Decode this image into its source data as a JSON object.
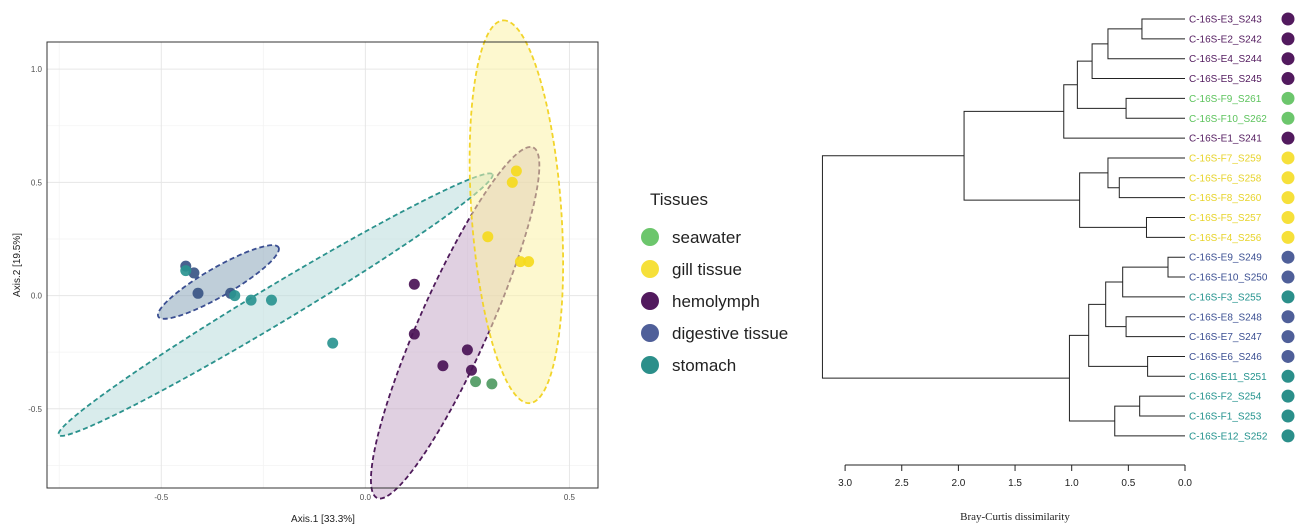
{
  "chart_data": [
    {
      "type": "scatter",
      "xlabel": "Axis.1   [33.3%]",
      "ylabel": "Axis.2   [19.5%]",
      "xlim": [
        -0.78,
        0.57
      ],
      "ylim": [
        -0.85,
        1.12
      ],
      "xticks": [
        -0.5,
        0.0,
        0.5
      ],
      "xtick_labels": [
        "-0.5",
        "0.0",
        "0.5"
      ],
      "yticks": [
        -0.5,
        0.0,
        0.5,
        1.0
      ],
      "ytick_labels": [
        "-0.5",
        "0.0",
        "0.5",
        "1.0"
      ],
      "grid": true,
      "series": [
        {
          "name": "seawater",
          "points": [
            [
              0.27,
              -0.38
            ],
            [
              0.31,
              -0.39
            ]
          ]
        },
        {
          "name": "gill tissue",
          "points": [
            [
              0.37,
              0.55
            ],
            [
              0.36,
              0.5
            ],
            [
              0.3,
              0.26
            ],
            [
              0.38,
              0.15
            ],
            [
              0.4,
              0.15
            ]
          ]
        },
        {
          "name": "hemolymph",
          "points": [
            [
              0.12,
              0.05
            ],
            [
              0.12,
              -0.17
            ],
            [
              0.19,
              -0.31
            ],
            [
              0.25,
              -0.24
            ],
            [
              0.26,
              -0.33
            ]
          ]
        },
        {
          "name": "digestive tissue",
          "points": [
            [
              -0.44,
              0.13
            ],
            [
              -0.42,
              0.1
            ],
            [
              -0.41,
              0.01
            ],
            [
              -0.33,
              0.01
            ]
          ]
        },
        {
          "name": "stomach",
          "points": [
            [
              -0.44,
              0.11
            ],
            [
              -0.32,
              0.0
            ],
            [
              -0.28,
              -0.02
            ],
            [
              -0.23,
              -0.02
            ],
            [
              -0.08,
              -0.21
            ]
          ]
        }
      ],
      "ellipses": [
        {
          "group": "stomach",
          "cx": -0.22,
          "cy": -0.04,
          "rx": 0.62,
          "ry": 0.045,
          "angle_deg": -31
        },
        {
          "group": "digestive tissue",
          "cx": -0.36,
          "cy": 0.06,
          "rx": 0.17,
          "ry": 0.035,
          "angle_deg": -30
        },
        {
          "group": "hemolymph",
          "cx": 0.22,
          "cy": -0.12,
          "rx": 0.47,
          "ry": 0.085,
          "angle_deg": -66
        },
        {
          "group": "gill tissue",
          "cx": 0.37,
          "cy": 0.37,
          "rx": 0.47,
          "ry": 0.11,
          "angle_deg": -94
        }
      ]
    },
    {
      "type": "dendrogram",
      "xlabel": "Bray-Curtis dissimilarity",
      "xlim": [
        3.0,
        0.0
      ],
      "xticks": [
        "3.0",
        "2.5",
        "2.0",
        "1.5",
        "1.0",
        "0.5",
        "0.0"
      ],
      "leaves": [
        {
          "label": "C-16S-E3_S243",
          "group": "hemolymph"
        },
        {
          "label": "C-16S-E2_S242",
          "group": "hemolymph"
        },
        {
          "label": "C-16S-E4_S244",
          "group": "hemolymph"
        },
        {
          "label": "C-16S-E5_S245",
          "group": "hemolymph"
        },
        {
          "label": "C-16S-F9_S261",
          "group": "seawater"
        },
        {
          "label": "C-16S-F10_S262",
          "group": "seawater"
        },
        {
          "label": "C-16S-E1_S241",
          "group": "hemolymph"
        },
        {
          "label": "C-16S-F7_S259",
          "group": "gill tissue"
        },
        {
          "label": "C-16S-F6_S258",
          "group": "gill tissue"
        },
        {
          "label": "C-16S-F8_S260",
          "group": "gill tissue"
        },
        {
          "label": "C-16S-F5_S257",
          "group": "gill tissue"
        },
        {
          "label": "C-16S-F4_S256",
          "group": "gill tissue"
        },
        {
          "label": "C-16S-E9_S249",
          "group": "digestive tissue"
        },
        {
          "label": "C-16S-E10_S250",
          "group": "digestive tissue"
        },
        {
          "label": "C-16S-F3_S255",
          "group": "stomach"
        },
        {
          "label": "C-16S-E8_S248",
          "group": "digestive tissue"
        },
        {
          "label": "C-16S-E7_S247",
          "group": "digestive tissue"
        },
        {
          "label": "C-16S-E6_S246",
          "group": "digestive tissue"
        },
        {
          "label": "C-16S-E11_S251",
          "group": "stomach"
        },
        {
          "label": "C-16S-F2_S254",
          "group": "stomach"
        },
        {
          "label": "C-16S-F1_S253",
          "group": "stomach"
        },
        {
          "label": "C-16S-E12_S252",
          "group": "stomach"
        }
      ],
      "merges": [
        {
          "a": "L0",
          "b": "L1",
          "height": 0.38
        },
        {
          "a": "M0",
          "b": "L2",
          "height": 0.68
        },
        {
          "a": "M1",
          "b": "L3",
          "height": 0.82
        },
        {
          "a": "L4",
          "b": "L5",
          "height": 0.52
        },
        {
          "a": "M2",
          "b": "M3",
          "height": 0.95
        },
        {
          "a": "M4",
          "b": "L6",
          "height": 1.07
        },
        {
          "a": "L8",
          "b": "L9",
          "height": 0.58
        },
        {
          "a": "L7",
          "b": "M6",
          "height": 0.68
        },
        {
          "a": "L10",
          "b": "L11",
          "height": 0.34
        },
        {
          "a": "M7",
          "b": "M8",
          "height": 0.93
        },
        {
          "a": "M5",
          "b": "M9",
          "height": 1.95
        },
        {
          "a": "L12",
          "b": "L13",
          "height": 0.15
        },
        {
          "a": "M11",
          "b": "L14",
          "height": 0.55
        },
        {
          "a": "L15",
          "b": "L16",
          "height": 0.52
        },
        {
          "a": "M12",
          "b": "M13",
          "height": 0.7
        },
        {
          "a": "L17",
          "b": "L18",
          "height": 0.33
        },
        {
          "a": "M14",
          "b": "M15",
          "height": 0.85
        },
        {
          "a": "L19",
          "b": "L20",
          "height": 0.4
        },
        {
          "a": "M17",
          "b": "L21",
          "height": 0.62
        },
        {
          "a": "M16",
          "b": "M18",
          "height": 1.02
        },
        {
          "a": "M10",
          "b": "M19",
          "height": 3.2
        }
      ]
    }
  ],
  "legend": {
    "title": "Tissues",
    "items": [
      {
        "label": "seawater",
        "color": "#6cc66c"
      },
      {
        "label": "gill tissue",
        "color": "#f6e03a"
      },
      {
        "label": "hemolymph",
        "color": "#521a5e"
      },
      {
        "label": "digestive tissue",
        "color": "#4f5f99"
      },
      {
        "label": "stomach",
        "color": "#2b8f8a"
      }
    ]
  },
  "group_colors": {
    "seawater": "#6cc66c",
    "gill tissue": "#f6e03a",
    "hemolymph": "#521a5e",
    "digestive tissue": "#4f5f99",
    "stomach": "#2b8f8a"
  },
  "group_point_colors": {
    "seawater": "#4f9a62",
    "gill tissue": "#f5da1e",
    "hemolymph": "#4a1256",
    "digestive tissue": "#3a5585",
    "stomach": "#2a9490"
  },
  "group_fill_colors": {
    "gill tissue": "#fbf3a8",
    "hemolymph": "#c6a9c9",
    "digestive tissue": "#8aa6ba",
    "stomach": "#b9dcdc"
  },
  "group_stroke_colors": {
    "gill tissue": "#f2d42a",
    "hemolymph": "#4e1a5a",
    "digestive tissue": "#3b4f92",
    "stomach": "#2b928d"
  },
  "leaf_text_colors": {
    "seawater": "#5cc35c",
    "gill tissue": "#e7d32a",
    "hemolymph": "#521a5e",
    "digestive tissue": "#3b4f92",
    "stomach": "#22928d"
  }
}
